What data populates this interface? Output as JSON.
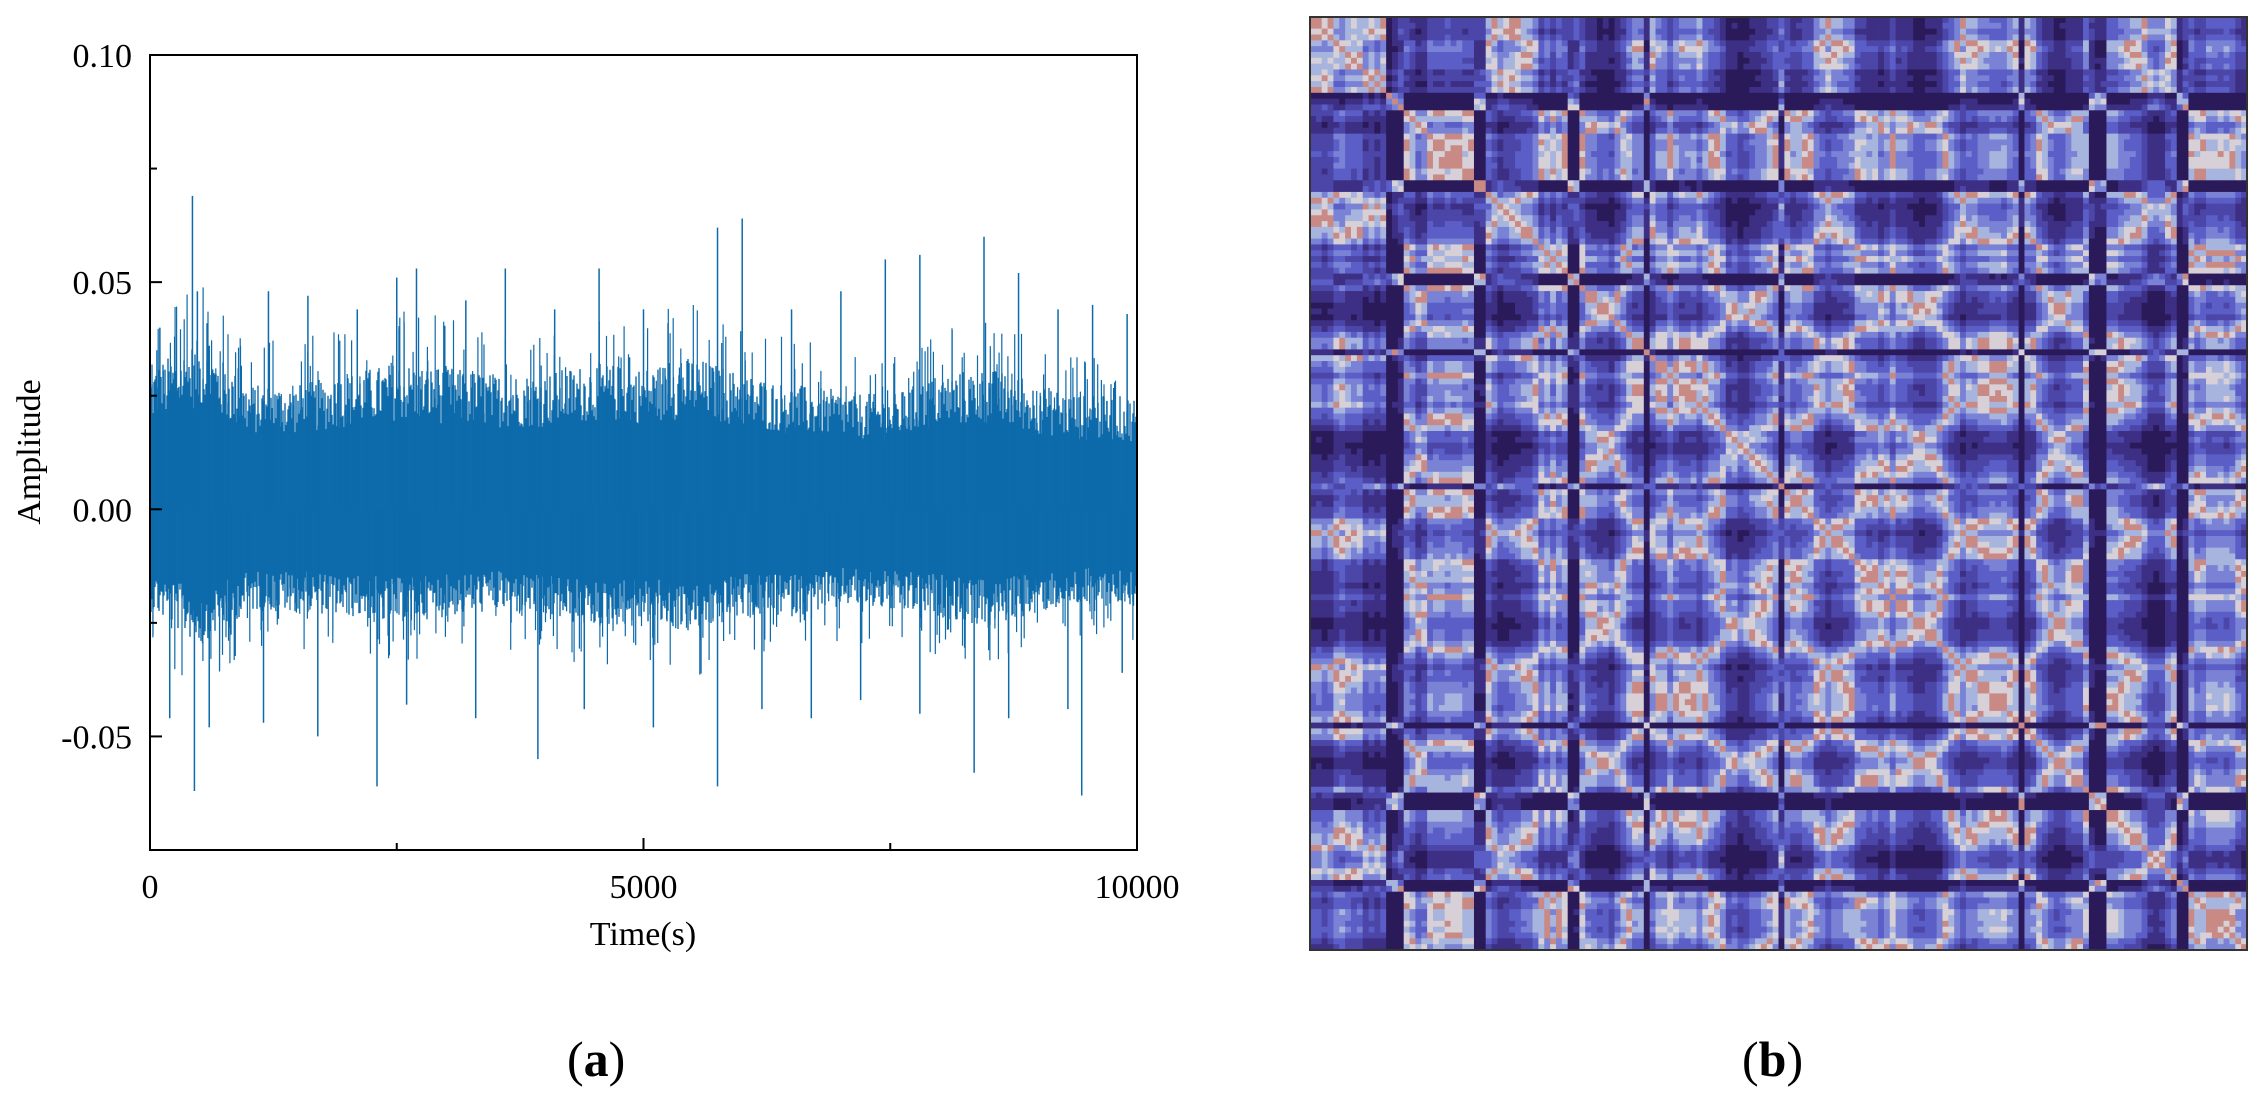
{
  "chart_data": [
    {
      "type": "line",
      "panel_label": "a",
      "xlabel": "Time(s)",
      "ylabel": "Amplitude",
      "xlim": [
        0,
        10000
      ],
      "ylim": [
        -0.075,
        0.1
      ],
      "xticks": [
        0,
        5000,
        10000
      ],
      "xtick_labels": [
        "0",
        "5000",
        "10000"
      ],
      "xminor_ticks": [
        2500,
        7500
      ],
      "yticks": [
        -0.05,
        0.0,
        0.05,
        0.1
      ],
      "ytick_labels": [
        "-0.05",
        "0.00",
        "0.05",
        "0.10"
      ],
      "yminor_ticks": [
        -0.025,
        0.025,
        0.075
      ],
      "grid": false,
      "color": "#0d6aab",
      "envelope": {
        "x": [
          0,
          500,
          1000,
          1500,
          2000,
          2500,
          3000,
          3500,
          4000,
          4500,
          5000,
          5500,
          6000,
          6500,
          7000,
          7500,
          8000,
          8500,
          9000,
          9500,
          10000
        ],
        "upper": [
          0.025,
          0.03,
          0.022,
          0.022,
          0.024,
          0.026,
          0.025,
          0.024,
          0.024,
          0.026,
          0.025,
          0.027,
          0.024,
          0.022,
          0.021,
          0.02,
          0.024,
          0.025,
          0.022,
          0.02,
          0.02
        ],
        "lower": [
          -0.018,
          -0.024,
          -0.018,
          -0.018,
          -0.019,
          -0.02,
          -0.019,
          -0.018,
          -0.019,
          -0.021,
          -0.02,
          -0.022,
          -0.019,
          -0.019,
          -0.017,
          -0.018,
          -0.019,
          -0.021,
          -0.018,
          -0.017,
          -0.017
        ]
      },
      "peaks": [
        {
          "x": 100,
          "y": 0.04
        },
        {
          "x": 250,
          "y": 0.038
        },
        {
          "x": 430,
          "y": 0.069
        },
        {
          "x": 480,
          "y": 0.048
        },
        {
          "x": 600,
          "y": 0.036
        },
        {
          "x": 1200,
          "y": 0.048
        },
        {
          "x": 1600,
          "y": 0.047
        },
        {
          "x": 2100,
          "y": 0.044
        },
        {
          "x": 2500,
          "y": 0.051
        },
        {
          "x": 2700,
          "y": 0.053
        },
        {
          "x": 3200,
          "y": 0.046
        },
        {
          "x": 3600,
          "y": 0.053
        },
        {
          "x": 4100,
          "y": 0.044
        },
        {
          "x": 4550,
          "y": 0.053
        },
        {
          "x": 5000,
          "y": 0.044
        },
        {
          "x": 5750,
          "y": 0.062
        },
        {
          "x": 6000,
          "y": 0.064
        },
        {
          "x": 6500,
          "y": 0.044
        },
        {
          "x": 7000,
          "y": 0.048
        },
        {
          "x": 7450,
          "y": 0.055
        },
        {
          "x": 7800,
          "y": 0.056
        },
        {
          "x": 8450,
          "y": 0.06
        },
        {
          "x": 8800,
          "y": 0.052
        },
        {
          "x": 9200,
          "y": 0.044
        },
        {
          "x": 9550,
          "y": 0.045
        },
        {
          "x": 9900,
          "y": 0.043
        }
      ],
      "troughs": [
        {
          "x": 200,
          "y": -0.046
        },
        {
          "x": 450,
          "y": -0.062
        },
        {
          "x": 600,
          "y": -0.048
        },
        {
          "x": 1150,
          "y": -0.047
        },
        {
          "x": 1700,
          "y": -0.05
        },
        {
          "x": 2300,
          "y": -0.061
        },
        {
          "x": 2600,
          "y": -0.043
        },
        {
          "x": 3300,
          "y": -0.046
        },
        {
          "x": 3930,
          "y": -0.055
        },
        {
          "x": 4400,
          "y": -0.044
        },
        {
          "x": 5100,
          "y": -0.048
        },
        {
          "x": 5750,
          "y": -0.061
        },
        {
          "x": 6200,
          "y": -0.044
        },
        {
          "x": 6700,
          "y": -0.046
        },
        {
          "x": 7200,
          "y": -0.042
        },
        {
          "x": 7800,
          "y": -0.045
        },
        {
          "x": 8350,
          "y": -0.058
        },
        {
          "x": 8700,
          "y": -0.046
        },
        {
          "x": 9300,
          "y": -0.044
        },
        {
          "x": 9440,
          "y": -0.063
        },
        {
          "x": 9850,
          "y": -0.036
        }
      ]
    },
    {
      "type": "heatmap",
      "panel_label": "b",
      "grid_size": 160,
      "colormap": [
        "#2b1a5a",
        "#3d2f84",
        "#4b46a8",
        "#5a5ec6",
        "#7a82d6",
        "#a7b5de",
        "#d7d0d6",
        "#c98a86"
      ]
    }
  ]
}
